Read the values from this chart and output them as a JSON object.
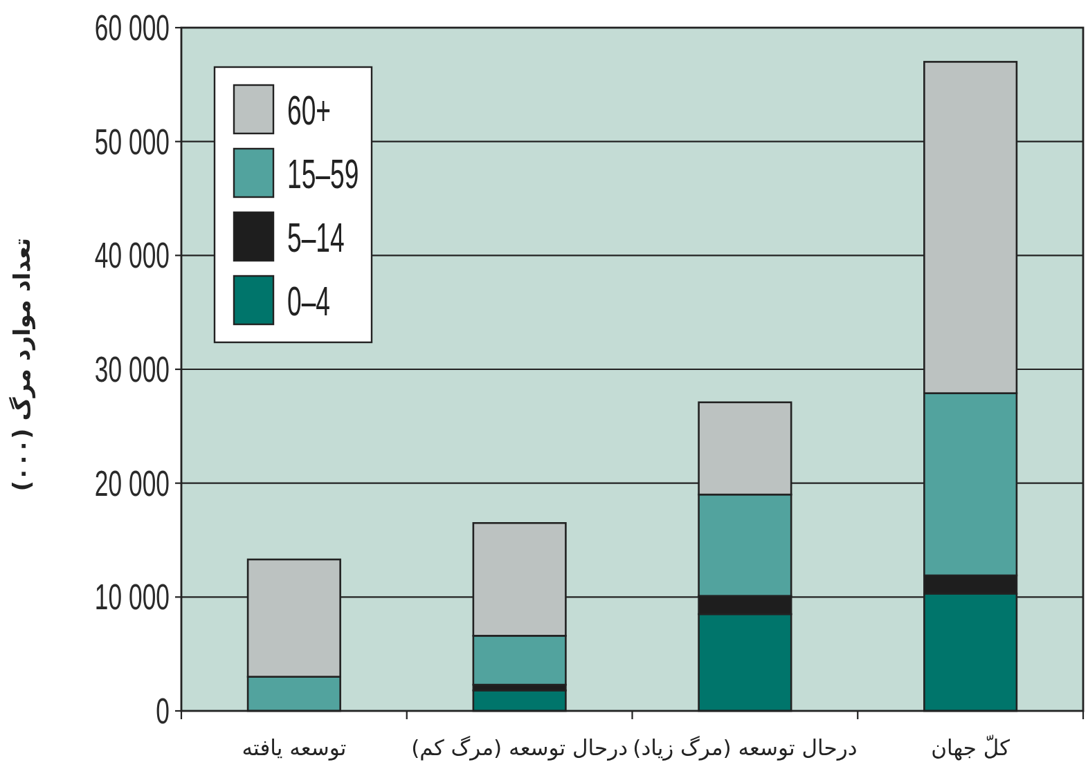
{
  "chart_data": {
    "type": "bar",
    "stacked": true,
    "ylabel": "تعداد موارد مرگ (۰۰۰)",
    "categories": [
      "توسعه یافته",
      "درحال توسعه (مرگ کم)",
      "درحال توسعه (مرگ زیاد)",
      "کلّ جهان"
    ],
    "series": [
      {
        "name": "0–4",
        "color": "#00756b",
        "values": [
          0,
          1800,
          8500,
          10300
        ]
      },
      {
        "name": "5–14",
        "color": "#1e1e1e",
        "values": [
          0,
          500,
          1600,
          1600
        ]
      },
      {
        "name": "15–59",
        "color": "#52a39e",
        "values": [
          3000,
          4300,
          8900,
          16000
        ]
      },
      {
        "name": "60+",
        "color": "#bcc2c1",
        "values": [
          10300,
          9900,
          8100,
          29100
        ]
      }
    ],
    "ylim": [
      0,
      60000
    ],
    "yticks": [
      0,
      {
        "value": 10000,
        "label": "10 000"
      },
      {
        "value": 20000,
        "label": "20 000"
      },
      {
        "value": 30000,
        "label": "30 000"
      },
      {
        "value": 40000,
        "label": "40 000"
      },
      {
        "value": 50000,
        "label": "50 000"
      },
      {
        "value": 60000,
        "label": "60 000"
      }
    ],
    "grid": "y",
    "legend": "top left"
  }
}
